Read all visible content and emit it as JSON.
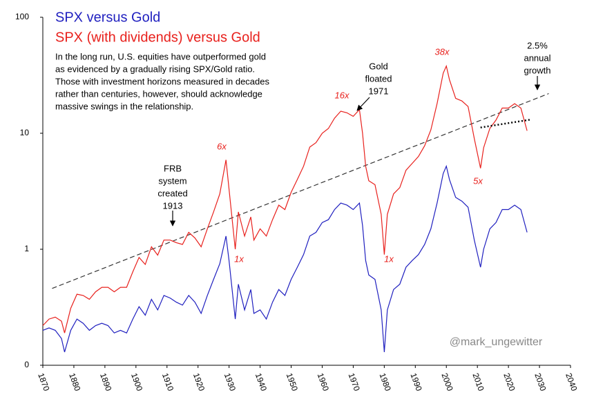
{
  "chart_data": {
    "type": "line",
    "series": [
      {
        "name": "SPX versus Gold",
        "color": "#1f1fbf",
        "values": [
          0.2,
          0.21,
          0.2,
          0.17,
          0.13,
          0.2,
          0.25,
          0.23,
          0.2,
          0.22,
          0.23,
          0.22,
          0.19,
          0.2,
          0.19,
          0.25,
          0.32,
          0.27,
          0.37,
          0.3,
          0.4,
          0.38,
          0.35,
          0.33,
          0.4,
          0.35,
          0.28,
          0.4,
          0.55,
          0.75,
          1.3,
          0.8,
          0.25,
          0.5,
          0.3,
          0.45,
          0.28,
          0.3,
          0.25,
          0.35,
          0.45,
          0.4,
          0.55,
          0.7,
          0.9,
          1.3,
          1.4,
          1.7,
          1.8,
          2.2,
          2.5,
          2.4,
          2.2,
          2.5,
          1.6,
          0.8,
          0.6,
          0.55,
          0.3,
          0.13,
          0.3,
          0.45,
          0.5,
          0.7,
          0.8,
          0.9,
          1.1,
          1.5,
          2.5,
          4.5,
          5.2,
          4,
          2.8,
          2.6,
          2.3,
          1.2,
          0.7,
          1.0,
          1.5,
          1.7,
          2.2,
          2.2,
          2.4,
          2.2,
          1.4
        ]
      },
      {
        "name": "SPX (with dividends) versus Gold",
        "color": "#e8201c",
        "values": [
          0.22,
          0.25,
          0.26,
          0.24,
          0.19,
          0.31,
          0.41,
          0.4,
          0.37,
          0.43,
          0.47,
          0.47,
          0.43,
          0.47,
          0.47,
          0.64,
          0.85,
          0.74,
          1.05,
          0.89,
          1.2,
          1.2,
          1.14,
          1.1,
          1.4,
          1.25,
          1.05,
          1.5,
          2.1,
          3.0,
          5.9,
          3.3,
          1.0,
          2.1,
          1.3,
          1.9,
          1.2,
          1.5,
          1.3,
          1.8,
          2.4,
          2.2,
          3.1,
          4.0,
          5.2,
          7.6,
          8.3,
          10,
          11,
          13.5,
          15.5,
          15,
          14,
          16,
          10,
          5.2,
          3.9,
          3.6,
          2,
          0.9,
          2,
          3,
          3.4,
          4.8,
          5.5,
          6.3,
          7.8,
          10.7,
          18,
          33,
          38,
          29,
          20,
          19,
          17,
          9,
          5,
          7.5,
          11,
          13,
          16.5,
          16.5,
          18,
          16.5,
          10.5
        ]
      }
    ],
    "x": [
      1870,
      1872,
      1874,
      1876,
      1877,
      1879,
      1881,
      1883,
      1885,
      1887,
      1889,
      1891,
      1893,
      1895,
      1897,
      1899,
      1901,
      1903,
      1905,
      1907,
      1909,
      1911,
      1913,
      1915,
      1917,
      1919,
      1921,
      1923,
      1925,
      1927,
      1929,
      1930,
      1932,
      1933,
      1935,
      1937,
      1938,
      1940,
      1942,
      1944,
      1946,
      1948,
      1950,
      1952,
      1954,
      1956,
      1958,
      1960,
      1962,
      1964,
      1966,
      1968,
      1970,
      1972,
      1973,
      1974,
      1975,
      1977,
      1979,
      1980,
      1981,
      1983,
      1985,
      1987,
      1989,
      1991,
      1993,
      1995,
      1997,
      1999,
      2000,
      2001,
      2003,
      2005,
      2007,
      2009,
      2011,
      2012,
      2014,
      2016,
      2018,
      2020,
      2022,
      2024,
      2026
    ],
    "trendline": {
      "x": [
        1873,
        2033
      ],
      "values": [
        0.46,
        22
      ],
      "color": "#333333"
    },
    "recent_trend": {
      "x": [
        2011,
        2027
      ],
      "values": [
        11.2,
        13.1
      ],
      "color": "#000000"
    },
    "description": [
      "In the long run, U.S. equities have outperformed gold",
      "as evidenced by a gradually rising SPX/Gold ratio.",
      "Those with investment horizons measured in decades",
      "rather than centuries, however, should acknowledge",
      "massive swings in the relationship."
    ],
    "annotations": [
      {
        "lines": [
          "FRB",
          "system",
          "created",
          "1913"
        ]
      },
      {
        "lines": [
          "Gold",
          "floated",
          "1971"
        ]
      },
      {
        "lines": [
          "2.5%",
          "annual",
          "growth"
        ]
      }
    ],
    "multiples": [
      "6x",
      "1x",
      "16x",
      "1x",
      "38x",
      "5x"
    ],
    "watermark": "@mark_ungewitter",
    "xlim": [
      1870,
      2040
    ],
    "xticks": [
      1870,
      1880,
      1890,
      1900,
      1910,
      1920,
      1930,
      1940,
      1950,
      1960,
      1970,
      1980,
      1990,
      2000,
      2010,
      2020,
      2030,
      2040
    ],
    "ylim": [
      0.1,
      100
    ],
    "log_y": true,
    "yticks": [
      {
        "value": 0.1,
        "label": "0"
      },
      1,
      10,
      100
    ]
  }
}
